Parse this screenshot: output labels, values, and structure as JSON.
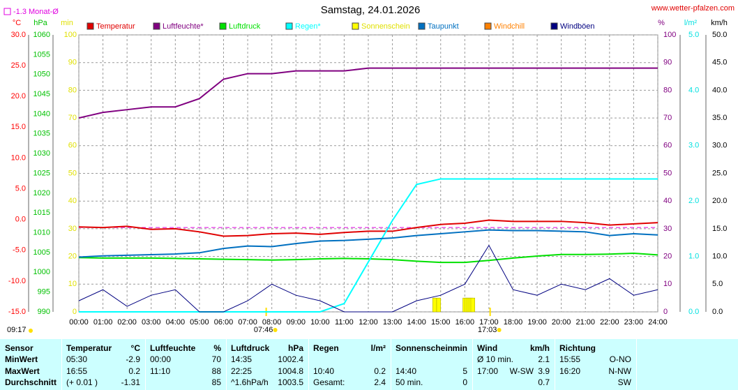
{
  "title": "Samstag, 24.01.2026",
  "site": "www.wetter-pfalzen.com",
  "current_time": "09:17",
  "chart_data": {
    "type": "line",
    "monthly_avg": {
      "value": -1.3,
      "label": "-1.3 Monat-Ø"
    },
    "sunrise": {
      "value": 7.767,
      "label": "07:46"
    },
    "sunset": {
      "value": 17.05,
      "label": "17:03"
    },
    "xlim": [
      0,
      24
    ],
    "xticks": [
      {
        "value": 0,
        "label": "00:00"
      },
      {
        "value": 1,
        "label": "01:00"
      },
      {
        "value": 2,
        "label": "02:00"
      },
      {
        "value": 3,
        "label": "03:00"
      },
      {
        "value": 4,
        "label": "04:00"
      },
      {
        "value": 5,
        "label": "05:00"
      },
      {
        "value": 6,
        "label": "06:00"
      },
      {
        "value": 7,
        "label": "07:00"
      },
      {
        "value": 8,
        "label": "08:00"
      },
      {
        "value": 9,
        "label": "09:00"
      },
      {
        "value": 10,
        "label": "10:00"
      },
      {
        "value": 11,
        "label": "11:00"
      },
      {
        "value": 12,
        "label": "12:00"
      },
      {
        "value": 13,
        "label": "13:00"
      },
      {
        "value": 14,
        "label": "14:00"
      },
      {
        "value": 15,
        "label": "15:00"
      },
      {
        "value": 16,
        "label": "16:00"
      },
      {
        "value": 17,
        "label": "17:00"
      },
      {
        "value": 18,
        "label": "18:00"
      },
      {
        "value": 19,
        "label": "19:00"
      },
      {
        "value": 20,
        "label": "20:00"
      },
      {
        "value": 21,
        "label": "21:00"
      },
      {
        "value": 22,
        "label": "22:00"
      },
      {
        "value": 23,
        "label": "23:00"
      },
      {
        "value": 24,
        "label": "24:00"
      }
    ],
    "grid": true,
    "axes": {
      "temp": {
        "label": "°C",
        "color": "#ff0000",
        "lim": [
          -15,
          30
        ],
        "ticks": [
          {
            "value": -15,
            "label": "-15.0"
          },
          {
            "value": -10,
            "label": "-10.0"
          },
          {
            "value": -5,
            "label": "-5.0"
          },
          {
            "value": 0,
            "label": "0.0"
          },
          {
            "value": 5,
            "label": "5.0"
          },
          {
            "value": 10,
            "label": "10.0"
          },
          {
            "value": 15,
            "label": "15.0"
          },
          {
            "value": 20,
            "label": "20.0"
          },
          {
            "value": 25,
            "label": "25.0"
          },
          {
            "value": 30,
            "label": "30.0"
          }
        ]
      },
      "hpa": {
        "label": "hPa",
        "color": "#00c000",
        "lim": [
          990,
          1060
        ],
        "ticks": [
          990,
          995,
          1000,
          1005,
          1010,
          1015,
          1020,
          1025,
          1030,
          1035,
          1040,
          1045,
          1050,
          1055,
          1060
        ]
      },
      "min": {
        "label": "min",
        "color": "#e0e000",
        "lim": [
          0,
          100
        ],
        "ticks": [
          0,
          10,
          20,
          30,
          40,
          50,
          60,
          70,
          80,
          90,
          100
        ]
      },
      "pct": {
        "label": "%",
        "color": "#800080",
        "lim": [
          0,
          100
        ],
        "ticks": [
          0,
          10,
          20,
          30,
          40,
          50,
          60,
          70,
          80,
          90,
          100
        ]
      },
      "rain": {
        "label": "l/m²",
        "color": "#00e0e0",
        "lim": [
          0,
          5
        ],
        "ticks": [
          {
            "value": 0,
            "label": "0.0"
          },
          {
            "value": 1,
            "label": "1.0"
          },
          {
            "value": 2,
            "label": "2.0"
          },
          {
            "value": 3,
            "label": "3.0"
          },
          {
            "value": 4,
            "label": "4.0"
          },
          {
            "value": 5,
            "label": "5.0"
          }
        ]
      },
      "wind": {
        "label": "km/h",
        "color": "#000000",
        "lim": [
          0,
          50
        ],
        "ticks": [
          {
            "value": 0,
            "label": "0.0"
          },
          {
            "value": 5,
            "label": "5.0"
          },
          {
            "value": 10,
            "label": "10.0"
          },
          {
            "value": 15,
            "label": "15.0"
          },
          {
            "value": 20,
            "label": "20.0"
          },
          {
            "value": 25,
            "label": "25.0"
          },
          {
            "value": 30,
            "label": "30.0"
          },
          {
            "value": 35,
            "label": "35.0"
          },
          {
            "value": 40,
            "label": "40.0"
          },
          {
            "value": 45,
            "label": "45.0"
          },
          {
            "value": 50,
            "label": "50.0"
          }
        ]
      }
    },
    "x": [
      0,
      1,
      2,
      3,
      4,
      5,
      6,
      7,
      8,
      9,
      10,
      11,
      12,
      13,
      14,
      15,
      16,
      17,
      18,
      19,
      20,
      21,
      22,
      23,
      24
    ],
    "series": [
      {
        "name": "Temperatur",
        "color": "#e00000",
        "axis": "temp",
        "values": [
          -1.2,
          -1.3,
          -1.1,
          -1.6,
          -1.5,
          -2.0,
          -2.7,
          -2.6,
          -2.3,
          -2.2,
          -2.4,
          -2.1,
          -1.9,
          -1.9,
          -1.3,
          -0.8,
          -0.6,
          -0.1,
          -0.3,
          -0.3,
          -0.3,
          -0.5,
          -0.9,
          -0.7,
          -0.5
        ]
      },
      {
        "name": "Luftfeuchte*",
        "color": "#800080",
        "axis": "pct",
        "values": [
          70,
          72,
          73,
          74,
          74,
          77,
          84,
          86,
          86,
          87,
          87,
          87,
          88,
          88,
          88,
          88,
          88,
          88,
          88,
          88,
          88,
          88,
          88,
          88,
          88
        ]
      },
      {
        "name": "Luftdruck",
        "color": "#00e000",
        "axis": "hpa",
        "values": [
          1003.7,
          1003.6,
          1003.6,
          1003.6,
          1003.5,
          1003.4,
          1003.3,
          1003.2,
          1003.1,
          1003.2,
          1003.4,
          1003.5,
          1003.4,
          1003.2,
          1002.8,
          1002.5,
          1002.5,
          1003.0,
          1003.6,
          1004.1,
          1004.5,
          1004.5,
          1004.6,
          1004.8,
          1004.4
        ]
      },
      {
        "name": "Regen*",
        "color": "#00ffff",
        "axis": "rain",
        "values": [
          0,
          0,
          0,
          0,
          0,
          0,
          0,
          0,
          0,
          0,
          0,
          0.15,
          0.9,
          1.65,
          2.3,
          2.4,
          2.4,
          2.4,
          2.4,
          2.4,
          2.4,
          2.4,
          2.4,
          2.4,
          2.4
        ]
      },
      {
        "name": "Sonnenschein",
        "color": "#ffff00",
        "axis": "min",
        "bars": true,
        "x": [
          14.667,
          14.833,
          15.917,
          16.0,
          16.083,
          16.167,
          16.25
        ],
        "values": [
          5,
          5,
          5,
          5,
          5,
          5,
          5
        ]
      },
      {
        "name": "Taupunkt",
        "color": "#0070c0",
        "axis": "temp",
        "values": [
          -6.1,
          -5.9,
          -5.8,
          -5.7,
          -5.6,
          -5.4,
          -4.7,
          -4.3,
          -4.4,
          -3.9,
          -3.5,
          -3.4,
          -3.2,
          -3.0,
          -2.6,
          -2.3,
          -2.0,
          -1.7,
          -1.8,
          -1.8,
          -1.9,
          -2.0,
          -2.6,
          -2.3,
          -2.5
        ]
      },
      {
        "name": "Windchill",
        "color": "#ff8000",
        "axis": "temp"
      },
      {
        "name": "Windböen",
        "color": "#000080",
        "axis": "wind",
        "values": [
          2,
          4,
          1,
          3,
          4,
          0,
          0,
          2,
          5,
          3,
          2,
          0,
          0,
          0,
          2,
          3,
          5,
          12,
          4,
          3,
          5,
          4,
          6,
          3,
          4
        ]
      }
    ]
  },
  "table": {
    "columns": [
      {
        "l": "Sensor"
      },
      {
        "l": "Temperatur",
        "r": "°C"
      },
      {
        "l": "Luftfeuchte",
        "r": "%"
      },
      {
        "l": "Luftdruck",
        "r": "hPa"
      },
      {
        "l": "Regen",
        "r": "l/m²"
      },
      {
        "l": "Sonnenschein",
        "r": "min"
      },
      {
        "l": "Wind",
        "r": "km/h"
      },
      {
        "l": "Richtung"
      }
    ],
    "rows": [
      {
        "label": "MinWert",
        "cells": [
          {
            "l": "05:30",
            "r": "-2.9"
          },
          {
            "l": "00:00",
            "r": "70"
          },
          {
            "l": "14:35",
            "r": "1002.4"
          },
          {},
          {},
          {
            "l": "Ø 10 min.",
            "r": "2.1"
          },
          {
            "l": "15:55",
            "r": "O-NO"
          }
        ]
      },
      {
        "label": "MaxWert",
        "cells": [
          {
            "l": "16:55",
            "r": "0.2"
          },
          {
            "l": "11:10",
            "r": "88"
          },
          {
            "l": "22:25",
            "r": "1004.8"
          },
          {
            "l": "10:40",
            "r": "0.2"
          },
          {
            "l": "14:40",
            "r": "5"
          },
          {
            "l": "17:00",
            "m": "W-SW",
            "r": "3.9"
          },
          {
            "l": "16:20",
            "r": "N-NW"
          }
        ]
      },
      {
        "label": "Durchschnitt",
        "cells": [
          {
            "l": "(+ 0.01 )",
            "r": "-1.31"
          },
          {
            "r": "85"
          },
          {
            "l": "^1.6hPa/h",
            "r": "1003.5"
          },
          {
            "l": "Gesamt:",
            "r": "2.4"
          },
          {
            "l": "50 min.",
            "r": "0"
          },
          {
            "r": "0.7"
          },
          {
            "r": "SW"
          }
        ]
      }
    ]
  }
}
